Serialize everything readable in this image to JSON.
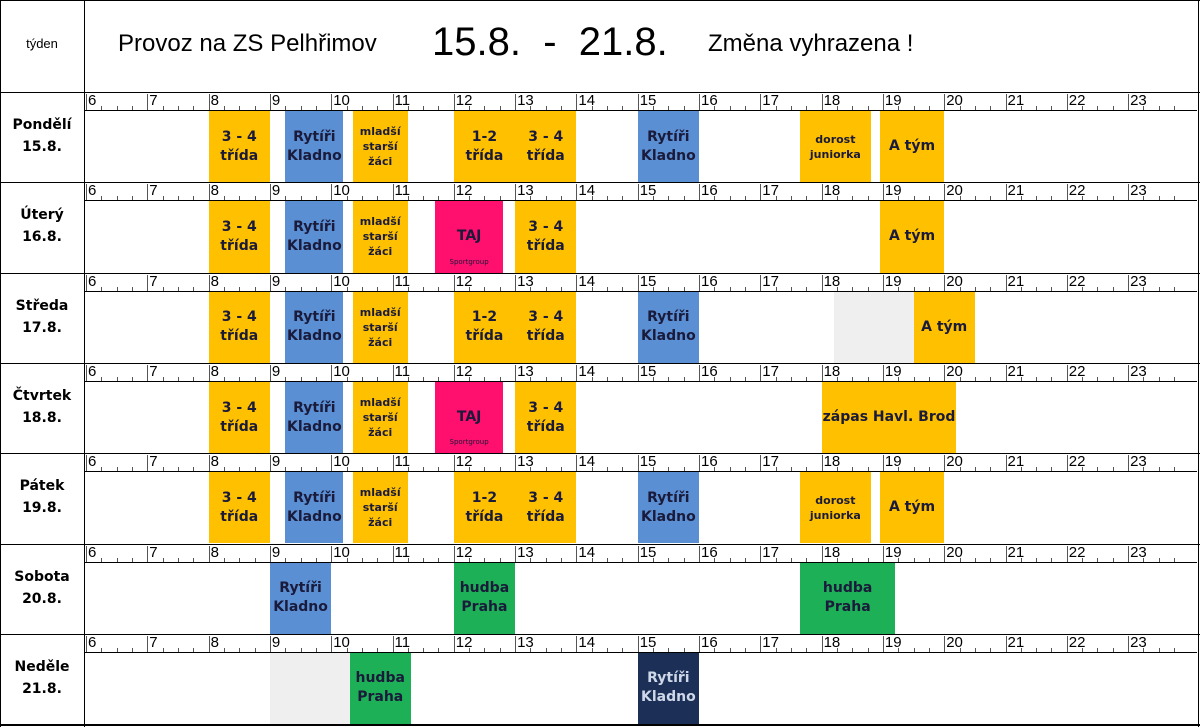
{
  "header": {
    "week_label": "týden",
    "title": "Provoz na ZS Pelhřimov",
    "date_range": "15.8.  -  21.8.",
    "note": "Změna vyhrazena !"
  },
  "hours": [
    "6",
    "7",
    "8",
    "9",
    "10",
    "11",
    "12",
    "13",
    "14",
    "15",
    "16",
    "17",
    "18",
    "19",
    "20",
    "21",
    "22",
    "23"
  ],
  "colors": {
    "yellow": "#FFC000",
    "blue": "#5B8FD4",
    "magenta": "#FF0F6E",
    "green": "#1EB056",
    "navy": "#1B2F57",
    "gray": "#EFEFEF"
  },
  "days": [
    {
      "name": "Pondělí",
      "date": "15.8.",
      "blocks": [
        {
          "lines": [
            "3 - 4",
            "třída"
          ],
          "color": "yellow",
          "start": 8,
          "end": 9
        },
        {
          "lines": [
            "Rytíři",
            "Kladno"
          ],
          "color": "blue",
          "start": 9.25,
          "end": 10.2
        },
        {
          "lines": [
            "mladší",
            "starší",
            "žáci"
          ],
          "color": "yellow",
          "start": 10.35,
          "end": 11.25,
          "small": true
        },
        {
          "lines": [
            "1-2",
            "třída"
          ],
          "color": "yellow",
          "start": 12,
          "end": 13
        },
        {
          "lines": [
            "3 - 4",
            "třída"
          ],
          "color": "yellow",
          "start": 13,
          "end": 14
        },
        {
          "lines": [
            "Rytíři",
            "Kladno"
          ],
          "color": "blue",
          "start": 15,
          "end": 16
        },
        {
          "lines": [
            "dorost",
            "juniorka"
          ],
          "color": "yellow",
          "start": 17.65,
          "end": 18.8,
          "small": true
        },
        {
          "lines": [
            "A tým"
          ],
          "color": "yellow",
          "start": 18.95,
          "end": 20
        }
      ]
    },
    {
      "name": "Úterý",
      "date": "16.8.",
      "blocks": [
        {
          "lines": [
            "3 - 4",
            "třída"
          ],
          "color": "yellow",
          "start": 8,
          "end": 9
        },
        {
          "lines": [
            "Rytíři",
            "Kladno"
          ],
          "color": "blue",
          "start": 9.25,
          "end": 10.2
        },
        {
          "lines": [
            "mladší",
            "starší",
            "žáci"
          ],
          "color": "yellow",
          "start": 10.35,
          "end": 11.25,
          "small": true
        },
        {
          "lines": [
            "TAJ"
          ],
          "color": "magenta",
          "start": 11.7,
          "end": 12.8,
          "sub": "Sportgroup"
        },
        {
          "lines": [
            "3 - 4",
            "třída"
          ],
          "color": "yellow",
          "start": 13,
          "end": 14
        },
        {
          "lines": [
            "A tým"
          ],
          "color": "yellow",
          "start": 18.95,
          "end": 20
        }
      ]
    },
    {
      "name": "Středa",
      "date": "17.8.",
      "blocks": [
        {
          "lines": [
            "3 - 4",
            "třída"
          ],
          "color": "yellow",
          "start": 8,
          "end": 9
        },
        {
          "lines": [
            "Rytíři",
            "Kladno"
          ],
          "color": "blue",
          "start": 9.25,
          "end": 10.2
        },
        {
          "lines": [
            "mladší",
            "starší",
            "žáci"
          ],
          "color": "yellow",
          "start": 10.35,
          "end": 11.25,
          "small": true
        },
        {
          "lines": [
            "1-2",
            "třída"
          ],
          "color": "yellow",
          "start": 12,
          "end": 13
        },
        {
          "lines": [
            "3 - 4",
            "třída"
          ],
          "color": "yellow",
          "start": 13,
          "end": 14
        },
        {
          "lines": [
            "Rytíři",
            "Kladno"
          ],
          "color": "blue",
          "start": 15,
          "end": 16
        },
        {
          "lines": [],
          "color": "gray",
          "start": 18.2,
          "end": 19.5
        },
        {
          "lines": [
            "A tým"
          ],
          "color": "yellow",
          "start": 19.5,
          "end": 20.5
        }
      ]
    },
    {
      "name": "Čtvrtek",
      "date": "18.8.",
      "blocks": [
        {
          "lines": [
            "3 - 4",
            "třída"
          ],
          "color": "yellow",
          "start": 8,
          "end": 9
        },
        {
          "lines": [
            "Rytíři",
            "Kladno"
          ],
          "color": "blue",
          "start": 9.25,
          "end": 10.2
        },
        {
          "lines": [
            "mladší",
            "starší",
            "žáci"
          ],
          "color": "yellow",
          "start": 10.35,
          "end": 11.25,
          "small": true
        },
        {
          "lines": [
            "TAJ"
          ],
          "color": "magenta",
          "start": 11.7,
          "end": 12.8,
          "sub": "Sportgroup"
        },
        {
          "lines": [
            "3 - 4",
            "třída"
          ],
          "color": "yellow",
          "start": 13,
          "end": 14
        },
        {
          "lines": [
            "zápas Havl. Brod"
          ],
          "color": "yellow",
          "start": 18,
          "end": 20.2
        }
      ]
    },
    {
      "name": "Pátek",
      "date": "19.8.",
      "blocks": [
        {
          "lines": [
            "3 - 4",
            "třída"
          ],
          "color": "yellow",
          "start": 8,
          "end": 9
        },
        {
          "lines": [
            "Rytíři",
            "Kladno"
          ],
          "color": "blue",
          "start": 9.25,
          "end": 10.2
        },
        {
          "lines": [
            "mladší",
            "starší",
            "žáci"
          ],
          "color": "yellow",
          "start": 10.35,
          "end": 11.25,
          "small": true
        },
        {
          "lines": [
            "1-2",
            "třída"
          ],
          "color": "yellow",
          "start": 12,
          "end": 13
        },
        {
          "lines": [
            "3 - 4",
            "třída"
          ],
          "color": "yellow",
          "start": 13,
          "end": 14
        },
        {
          "lines": [
            "Rytíři",
            "Kladno"
          ],
          "color": "blue",
          "start": 15,
          "end": 16
        },
        {
          "lines": [
            "dorost",
            "juniorka"
          ],
          "color": "yellow",
          "start": 17.65,
          "end": 18.8,
          "small": true
        },
        {
          "lines": [
            "A tým"
          ],
          "color": "yellow",
          "start": 18.95,
          "end": 20
        }
      ]
    },
    {
      "name": "Sobota",
      "date": "20.8.",
      "blocks": [
        {
          "lines": [
            "Rytíři",
            "Kladno"
          ],
          "color": "blue",
          "start": 9,
          "end": 10
        },
        {
          "lines": [
            "hudba",
            "Praha"
          ],
          "color": "green",
          "start": 12,
          "end": 13
        },
        {
          "lines": [
            "hudba",
            "Praha"
          ],
          "color": "green",
          "start": 17.65,
          "end": 19.2
        }
      ]
    },
    {
      "name": "Neděle",
      "date": "21.8.",
      "blocks": [
        {
          "lines": [],
          "color": "gray",
          "start": 9,
          "end": 10
        },
        {
          "lines": [],
          "color": "gray",
          "start": 10,
          "end": 10.3
        },
        {
          "lines": [
            "hudba",
            "Praha"
          ],
          "color": "green",
          "start": 10.3,
          "end": 11.3
        },
        {
          "lines": [
            "Rytíři",
            "Kladno"
          ],
          "color": "navy",
          "start": 15,
          "end": 16
        }
      ]
    }
  ]
}
